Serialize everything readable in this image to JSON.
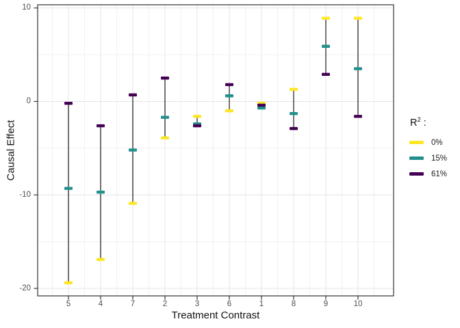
{
  "figure": {
    "background": "#ffffff",
    "panel_border_color": "#2f2f2f",
    "grid_major_color": "#e4e4e4",
    "grid_minor_color": "#f0f0f0",
    "range_line_color": "#424242",
    "tick_mark_color": "#333333",
    "tick_label_color": "#4d4d4d"
  },
  "legend": {
    "title": {
      "base": "R",
      "superscript": "2",
      "suffix": " :"
    },
    "items": [
      {
        "label": "0%",
        "color": "#FDE725"
      },
      {
        "label": "15%",
        "color": "#21908C"
      },
      {
        "label": "61%",
        "color": "#440154"
      }
    ]
  },
  "chart_data": {
    "type": "scatter",
    "subtype": "pointrange",
    "title": "",
    "xlabel": "Treatment Contrast",
    "ylabel": "Causal Effect",
    "categories": [
      "5",
      "4",
      "7",
      "2",
      "3",
      "6",
      "1",
      "8",
      "9",
      "10"
    ],
    "series": [
      {
        "name": "0%",
        "color": "#FDE725",
        "values": [
          -19.4,
          -16.9,
          -10.9,
          -3.9,
          -1.6,
          -1.0,
          -0.2,
          1.3,
          8.9,
          8.9
        ]
      },
      {
        "name": "15%",
        "color": "#21908C",
        "values": [
          -9.3,
          -9.7,
          -5.2,
          -1.7,
          -2.4,
          0.6,
          -0.7,
          -1.3,
          5.9,
          3.5
        ]
      },
      {
        "name": "61%",
        "color": "#440154",
        "values": [
          -0.2,
          -2.6,
          0.7,
          2.5,
          -2.6,
          1.8,
          -0.4,
          -2.9,
          2.9,
          -1.6
        ]
      }
    ],
    "yticks": [
      10,
      0,
      -10,
      -20
    ],
    "ytick_labels": [
      "10",
      "0",
      "-10",
      "-20"
    ],
    "yticks_minor": [
      5,
      -5,
      -15
    ],
    "ylim": [
      -20.8,
      10.34
    ],
    "grid": true,
    "legend_position": "right",
    "legend_title": "R² :"
  }
}
